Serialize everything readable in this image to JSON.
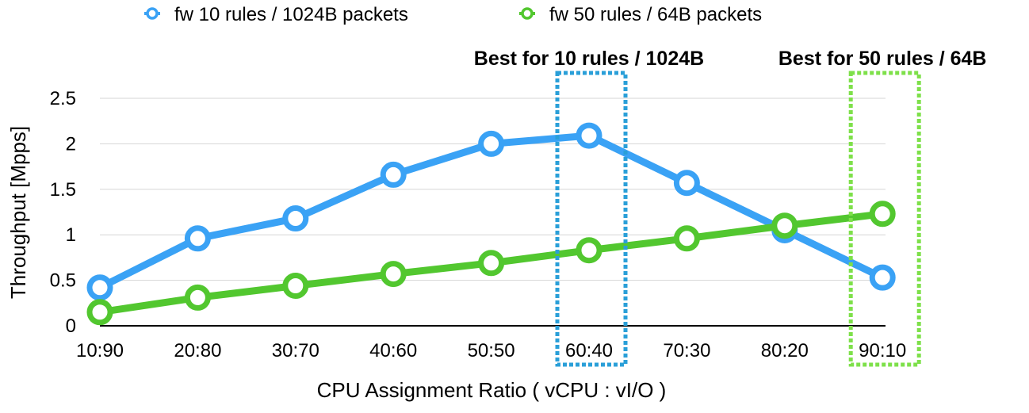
{
  "chart_data": {
    "type": "line",
    "categories": [
      "10:90",
      "20:80",
      "30:70",
      "40:60",
      "50:50",
      "60:40",
      "70:30",
      "80:20",
      "90:10"
    ],
    "series": [
      {
        "name": "fw 10 rules / 1024B packets",
        "color": "#3aa2f5",
        "values": [
          0.42,
          0.96,
          1.18,
          1.66,
          2.0,
          2.09,
          1.57,
          1.05,
          0.53
        ]
      },
      {
        "name": "fw 50 rules / 64B packets",
        "color": "#52c72f",
        "values": [
          0.15,
          0.31,
          0.44,
          0.57,
          0.69,
          0.83,
          0.96,
          1.1,
          1.23
        ]
      }
    ],
    "xlabel": "CPU Assignment Ratio ( vCPU : vI/O )",
    "ylabel": "Throughput [Mpps]",
    "ylim": [
      0,
      2.5
    ],
    "yticks": [
      "0",
      "0.5",
      "1",
      "1.5",
      "2",
      "2.5"
    ],
    "grid": true,
    "legend": "top",
    "annotations": [
      {
        "text": "Best for 10 rules / 1024B",
        "category": "60:40",
        "color": "#2a9fd8"
      },
      {
        "text": "Best for 50 rules / 64B",
        "category": "90:10",
        "color": "#7ee04a"
      }
    ]
  }
}
